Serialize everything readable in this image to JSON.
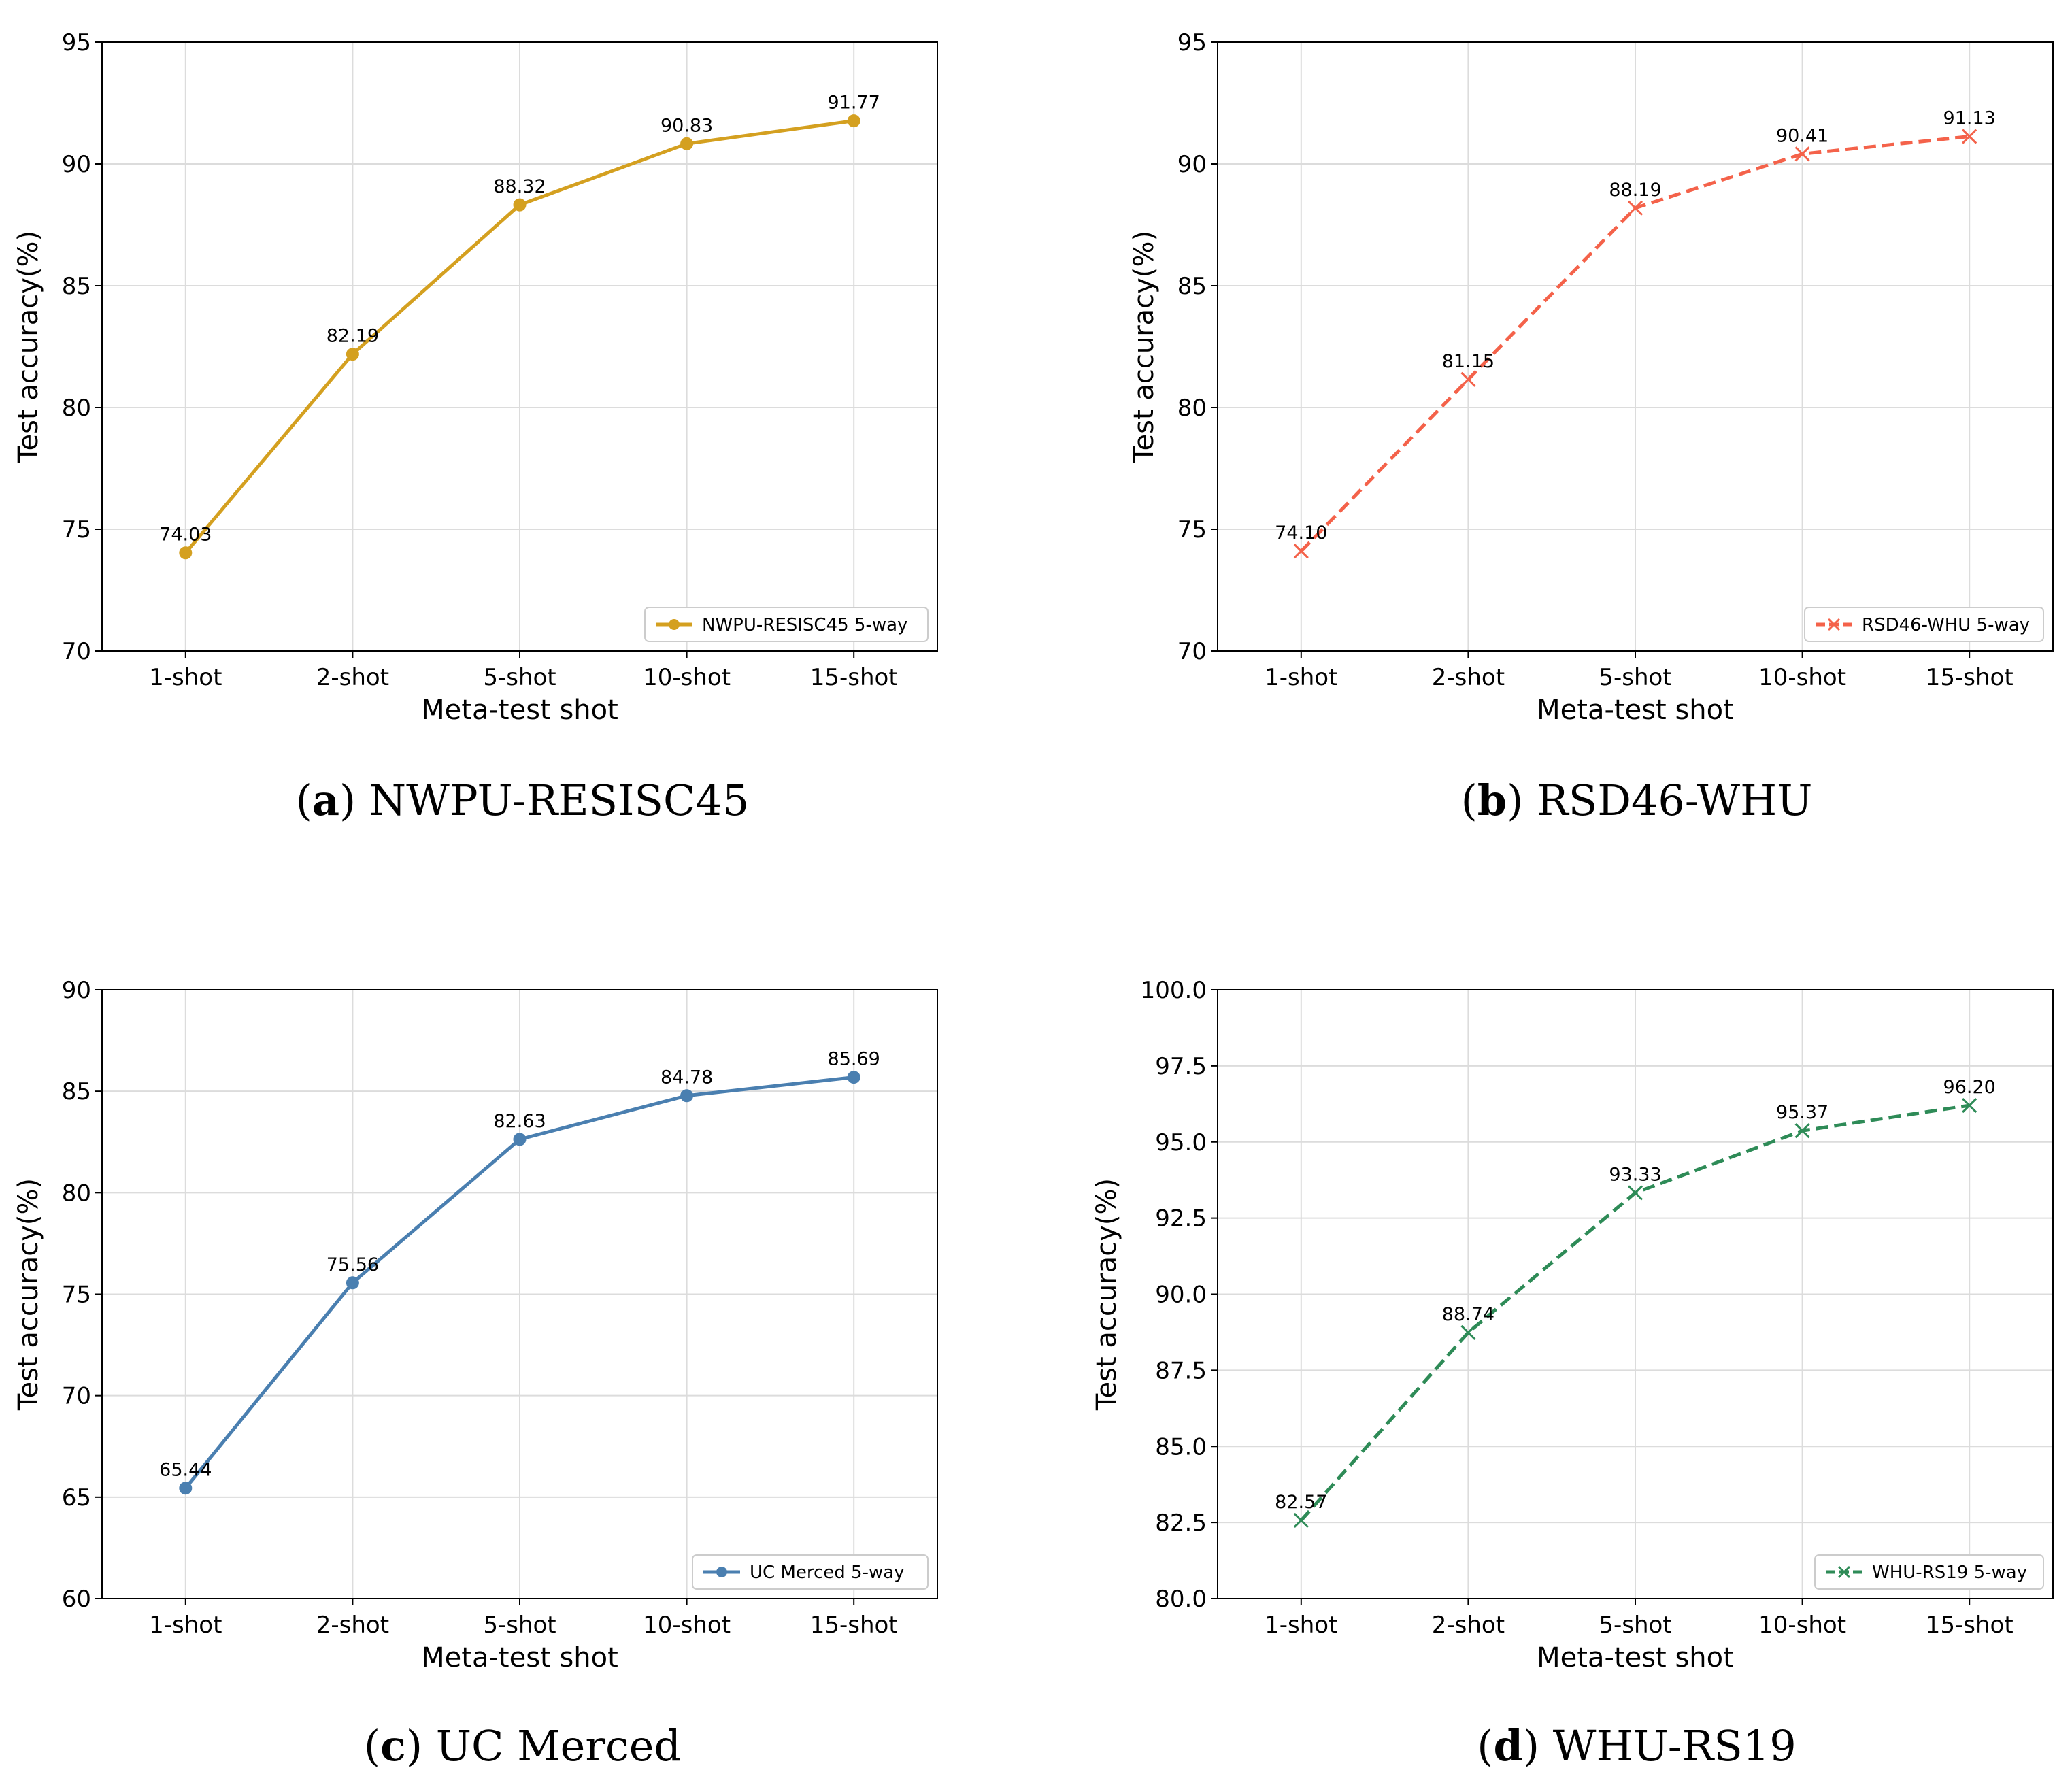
{
  "colors": {
    "gold": "#d4a020",
    "coral": "#f4624a",
    "steel": "#4a7fb0",
    "green": "#2e8b57"
  },
  "chart_data": [
    {
      "type": "line",
      "caption_letter": "a",
      "caption_text": "NWPU-RESISC45",
      "categories": [
        "1-shot",
        "2-shot",
        "5-shot",
        "10-shot",
        "15-shot"
      ],
      "values": [
        74.03,
        82.19,
        88.32,
        90.83,
        91.77
      ],
      "value_labels": [
        "74.03",
        "82.19",
        "88.32",
        "90.83",
        "91.77"
      ],
      "xlabel": "Meta-test shot",
      "ylabel": "Test accuracy(%)",
      "ylim": [
        70,
        95
      ],
      "yticks": [
        "70",
        "75",
        "80",
        "85",
        "90",
        "95"
      ],
      "legend": "NWPU-RESISC45 5-way",
      "legend_position": "lower-right",
      "marker": "circle",
      "line_style": "solid",
      "color": "#d4a020",
      "grid": true
    },
    {
      "type": "line",
      "caption_letter": "b",
      "caption_text": "RSD46-WHU",
      "categories": [
        "1-shot",
        "2-shot",
        "5-shot",
        "10-shot",
        "15-shot"
      ],
      "values": [
        74.1,
        81.15,
        88.19,
        90.41,
        91.13
      ],
      "value_labels": [
        "74.10",
        "81.15",
        "88.19",
        "90.41",
        "91.13"
      ],
      "xlabel": "Meta-test shot",
      "ylabel": "Test accuracy(%)",
      "ylim": [
        70,
        95
      ],
      "yticks": [
        "70",
        "75",
        "80",
        "85",
        "90",
        "95"
      ],
      "legend": "RSD46-WHU 5-way",
      "legend_position": "lower-right",
      "marker": "x",
      "line_style": "dashed",
      "color": "#f4624a",
      "grid": true
    },
    {
      "type": "line",
      "caption_letter": "c",
      "caption_text": "UC Merced",
      "categories": [
        "1-shot",
        "2-shot",
        "5-shot",
        "10-shot",
        "15-shot"
      ],
      "values": [
        65.44,
        75.56,
        82.63,
        84.78,
        85.69
      ],
      "value_labels": [
        "65.44",
        "75.56",
        "82.63",
        "84.78",
        "85.69"
      ],
      "xlabel": "Meta-test shot",
      "ylabel": "Test accuracy(%)",
      "ylim": [
        60,
        90
      ],
      "yticks": [
        "60",
        "65",
        "70",
        "75",
        "80",
        "85",
        "90"
      ],
      "legend": "UC Merced 5-way",
      "legend_position": "lower-right",
      "marker": "circle",
      "line_style": "solid",
      "color": "#4a7fb0",
      "grid": true
    },
    {
      "type": "line",
      "caption_letter": "d",
      "caption_text": "WHU-RS19",
      "categories": [
        "1-shot",
        "2-shot",
        "5-shot",
        "10-shot",
        "15-shot"
      ],
      "values": [
        82.57,
        88.74,
        93.33,
        95.37,
        96.2
      ],
      "value_labels": [
        "82.57",
        "88.74",
        "93.33",
        "95.37",
        "96.20"
      ],
      "xlabel": "Meta-test shot",
      "ylabel": "Test accuracy(%)",
      "ylim": [
        80,
        100
      ],
      "yticks": [
        "80.0",
        "82.5",
        "85.0",
        "87.5",
        "90.0",
        "92.5",
        "95.0",
        "97.5",
        "100.0"
      ],
      "legend": "WHU-RS19 5-way",
      "legend_position": "lower-right",
      "marker": "x",
      "line_style": "dashed",
      "color": "#2e8b57",
      "grid": true
    }
  ]
}
